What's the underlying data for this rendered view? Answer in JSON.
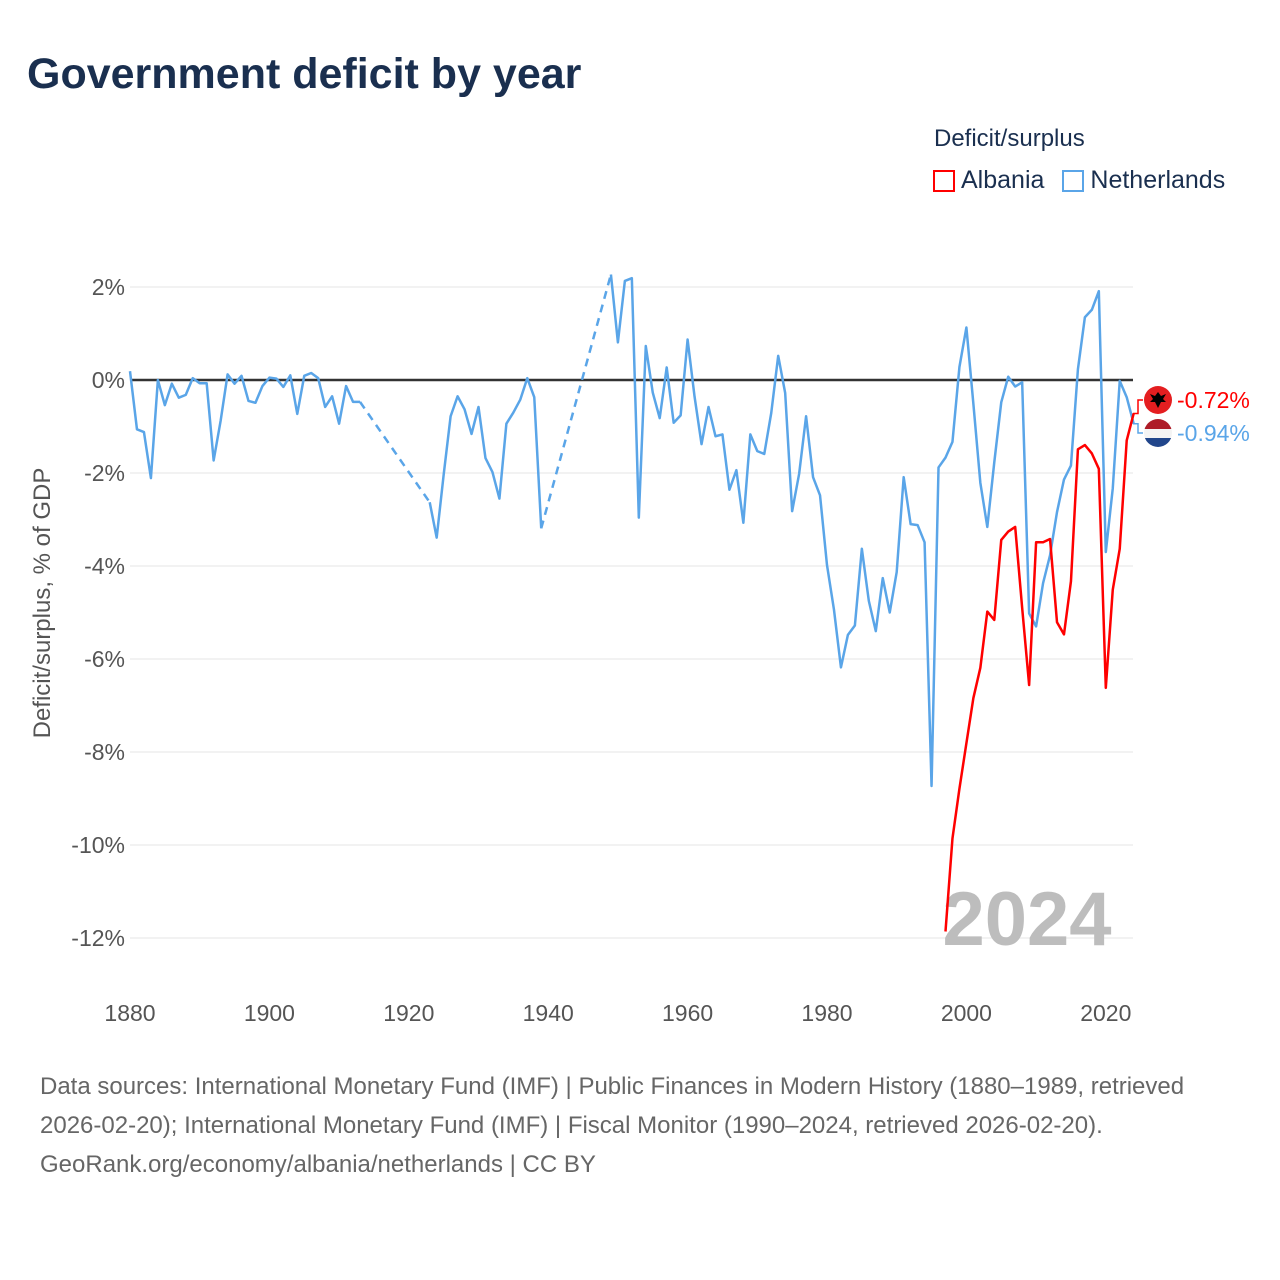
{
  "title": "Government deficit by year",
  "legend": {
    "title": "Deficit/surplus",
    "items": [
      {
        "name": "Albania",
        "color": "#ff0000"
      },
      {
        "name": "Netherlands",
        "color": "#5aa5e8"
      }
    ]
  },
  "year_watermark": "2024",
  "footer": {
    "sources": "Data sources: International Monetary Fund (IMF) | Public Finances in Modern History (1880–1989, retrieved 2026-02-20); International Monetary Fund (IMF) | Fiscal Monitor (1990–2024, retrieved 2026-02-20).",
    "credit": "GeoRank.org/economy/albania/netherlands | CC BY"
  },
  "chart_data": {
    "type": "line",
    "title": "Government deficit by year",
    "xlabel": "",
    "ylabel": "Deficit/surplus, % of GDP",
    "xlim": [
      1880,
      2024
    ],
    "ylim": [
      -13,
      2.5
    ],
    "xticks": [
      1880,
      1900,
      1920,
      1940,
      1960,
      1980,
      2000,
      2020
    ],
    "yticks": [
      2,
      0,
      -2,
      -4,
      -6,
      -8,
      -10,
      -12
    ],
    "ytick_labels": [
      "2%",
      "0%",
      "-2%",
      "-4%",
      "-6%",
      "-8%",
      "-10%",
      "-12%"
    ],
    "grid": true,
    "legend_position": "top-right",
    "series": [
      {
        "name": "Albania",
        "color": "#ff0000",
        "end_label": "-0.72%",
        "x": [
          1997,
          1998,
          1999,
          2000,
          2001,
          2002,
          2003,
          2004,
          2005,
          2006,
          2007,
          2008,
          2009,
          2010,
          2011,
          2012,
          2013,
          2014,
          2015,
          2016,
          2017,
          2018,
          2019,
          2020,
          2021,
          2022,
          2023,
          2024
        ],
        "y": [
          -11.86,
          -9.86,
          -8.79,
          -7.81,
          -6.84,
          -6.19,
          -4.98,
          -5.16,
          -3.44,
          -3.26,
          -3.16,
          -4.9,
          -6.56,
          -3.49,
          -3.49,
          -3.42,
          -5.21,
          -5.47,
          -4.33,
          -1.49,
          -1.4,
          -1.58,
          -1.91,
          -6.62,
          -4.51,
          -3.63,
          -1.3,
          -0.72
        ]
      },
      {
        "name": "Netherlands",
        "color": "#5aa5e8",
        "end_label": "-0.94%",
        "x": [
          1880,
          1881,
          1882,
          1883,
          1884,
          1885,
          1886,
          1887,
          1888,
          1889,
          1890,
          1891,
          1892,
          1893,
          1894,
          1895,
          1896,
          1897,
          1898,
          1899,
          1900,
          1901,
          1902,
          1903,
          1904,
          1905,
          1906,
          1907,
          1908,
          1909,
          1910,
          1911,
          1912,
          1913,
          1923,
          1924,
          1925,
          1926,
          1927,
          1928,
          1929,
          1930,
          1931,
          1932,
          1933,
          1934,
          1935,
          1936,
          1937,
          1938,
          1939,
          1949,
          1950,
          1951,
          1952,
          1953,
          1954,
          1955,
          1956,
          1957,
          1958,
          1959,
          1960,
          1961,
          1962,
          1963,
          1964,
          1965,
          1966,
          1967,
          1968,
          1969,
          1970,
          1971,
          1972,
          1973,
          1974,
          1975,
          1976,
          1977,
          1978,
          1979,
          1980,
          1981,
          1982,
          1983,
          1984,
          1985,
          1986,
          1987,
          1988,
          1989,
          1990,
          1991,
          1992,
          1993,
          1994,
          1995,
          1996,
          1997,
          1998,
          1999,
          2000,
          2001,
          2002,
          2003,
          2004,
          2005,
          2006,
          2007,
          2008,
          2009,
          2010,
          2011,
          2012,
          2013,
          2014,
          2015,
          2016,
          2017,
          2018,
          2019,
          2020,
          2021,
          2022,
          2023,
          2024
        ],
        "y": [
          0.19,
          -1.06,
          -1.12,
          -2.11,
          0,
          -0.54,
          -0.08,
          -0.38,
          -0.32,
          0.04,
          -0.07,
          -0.07,
          -1.73,
          -0.88,
          0.12,
          -0.08,
          0.09,
          -0.45,
          -0.49,
          -0.13,
          0.05,
          0.03,
          -0.15,
          0.1,
          -0.73,
          0.09,
          0.15,
          0.04,
          -0.58,
          -0.35,
          -0.94,
          -0.13,
          -0.47,
          -0.47,
          -2.63,
          -3.39,
          -2.04,
          -0.78,
          -0.35,
          -0.63,
          -1.16,
          -0.58,
          -1.68,
          -1.98,
          -2.55,
          -0.94,
          -0.7,
          -0.42,
          0.04,
          -0.37,
          -3.19,
          2.27,
          0.81,
          2.13,
          2.19,
          -2.96,
          0.73,
          -0.27,
          -0.82,
          0.27,
          -0.92,
          -0.76,
          0.87,
          -0.36,
          -1.38,
          -0.58,
          -1.21,
          -1.17,
          -2.36,
          -1.94,
          -3.07,
          -1.17,
          -1.53,
          -1.59,
          -0.71,
          0.52,
          -0.28,
          -2.82,
          -2.02,
          -0.78,
          -2.09,
          -2.48,
          -3.98,
          -4.94,
          -6.18,
          -5.48,
          -5.28,
          -3.63,
          -4.75,
          -5.4,
          -4.26,
          -5.0,
          -4.13,
          -2.09,
          -3.1,
          -3.12,
          -3.49,
          -8.73,
          -1.88,
          -1.67,
          -1.33,
          0.28,
          1.13,
          -0.51,
          -2.21,
          -3.16,
          -1.77,
          -0.48,
          0.07,
          -0.14,
          -0.05,
          -5.02,
          -5.3,
          -4.37,
          -3.77,
          -2.84,
          -2.14,
          -1.84,
          0.23,
          1.35,
          1.51,
          1.91,
          -3.7,
          -2.33,
          -0.02,
          -0.37,
          -0.94
        ]
      }
    ]
  }
}
